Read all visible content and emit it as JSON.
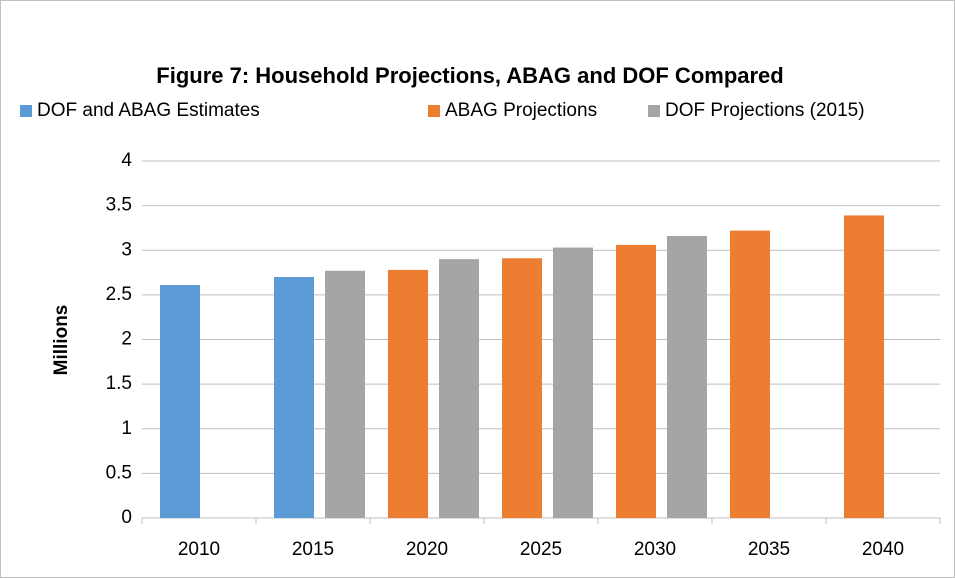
{
  "chart_data": {
    "type": "bar",
    "title": "Figure 7: Household Projections, ABAG and DOF Compared",
    "y_label": "Millions",
    "categories": [
      "2010",
      "2015",
      "2020",
      "2025",
      "2030",
      "2035",
      "2040"
    ],
    "series": [
      {
        "name": "DOF and ABAG Estimates",
        "color": "#5b9bd5",
        "values": [
          2.61,
          2.7,
          null,
          null,
          null,
          null,
          null
        ]
      },
      {
        "name": "ABAG Projections",
        "color": "#ed7d31",
        "values": [
          null,
          null,
          2.78,
          2.91,
          3.06,
          3.22,
          3.39
        ]
      },
      {
        "name": "DOF Projections (2015)",
        "color": "#a5a5a5",
        "values": [
          null,
          2.77,
          2.9,
          3.03,
          3.16,
          null,
          null
        ]
      }
    ],
    "ylim": [
      0,
      4
    ],
    "yticks": [
      0,
      0.5,
      1,
      1.5,
      2,
      2.5,
      3,
      3.5,
      4
    ],
    "grid": true,
    "legend": "top"
  }
}
